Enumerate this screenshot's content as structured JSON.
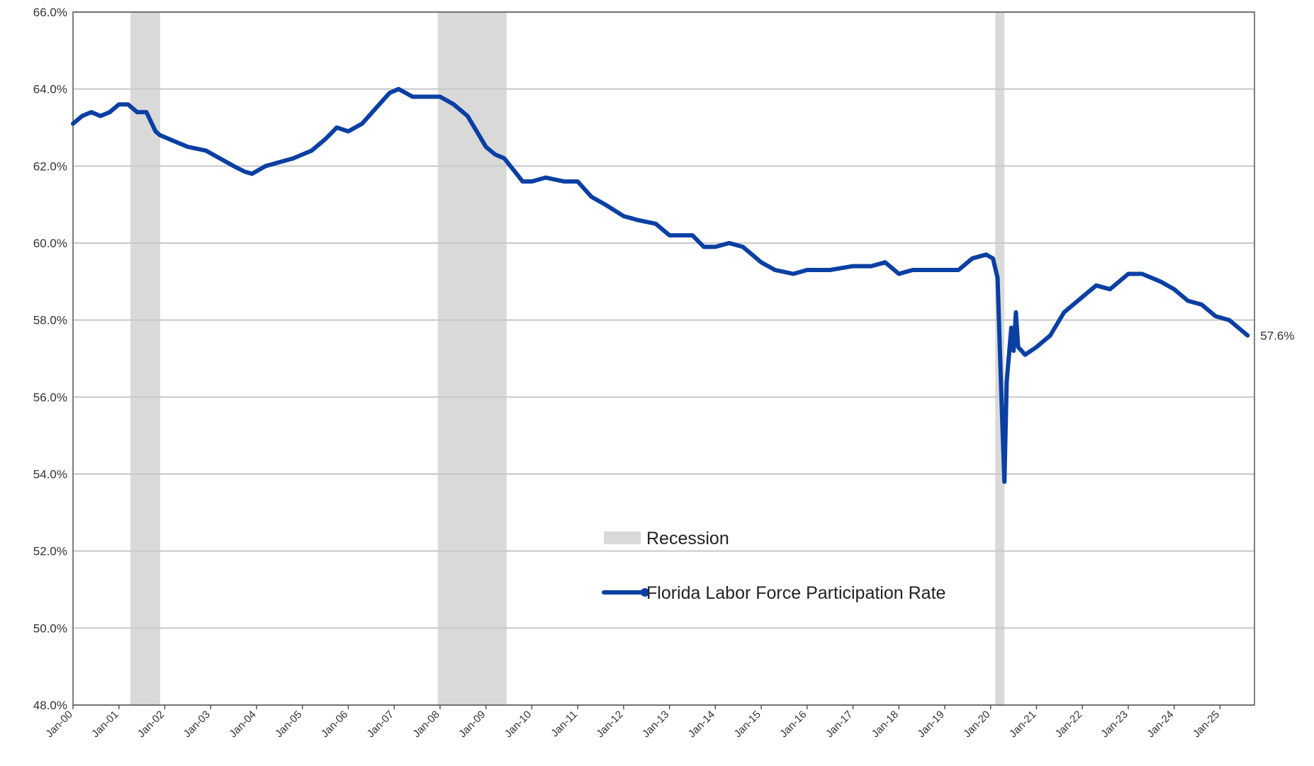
{
  "chart_data": {
    "type": "line",
    "title": "",
    "xlabel": "",
    "ylabel": "",
    "ylim": [
      48,
      66
    ],
    "ytick_values": [
      48,
      50,
      52,
      54,
      56,
      58,
      60,
      62,
      64,
      66
    ],
    "ytick_labels": [
      "48.0%",
      "50.0%",
      "52.0%",
      "54.0%",
      "56.0%",
      "58.0%",
      "60.0%",
      "62.0%",
      "64.0%",
      "66.0%"
    ],
    "xlim": [
      2000.0,
      2025.75
    ],
    "xtick_labels": [
      "Jan-00",
      "Jan-01",
      "Jan-02",
      "Jan-03",
      "Jan-04",
      "Jan-05",
      "Jan-06",
      "Jan-07",
      "Jan-08",
      "Jan-09",
      "Jan-10",
      "Jan-11",
      "Jan-12",
      "Jan-13",
      "Jan-14",
      "Jan-15",
      "Jan-16",
      "Jan-17",
      "Jan-18",
      "Jan-19",
      "Jan-20",
      "Jan-21",
      "Jan-22",
      "Jan-23",
      "Jan-24",
      "Jan-25"
    ],
    "grid": "horizontal",
    "legend_placement": "center-bottom",
    "legend": {
      "recession_label": "Recession",
      "series_label": "Florida Labor Force Participation Rate"
    },
    "colors": {
      "series": "#0a3fa3",
      "recession": "#d9d9d9",
      "grid": "#c8c8c8",
      "axis": "#555555"
    },
    "recessions": [
      {
        "start": 2001.25,
        "end": 2001.9
      },
      {
        "start": 2007.95,
        "end": 2009.45
      },
      {
        "start": 2020.1,
        "end": 2020.3
      }
    ],
    "series": [
      {
        "name": "Florida Labor Force Participation Rate",
        "x": [
          2000.0,
          2000.2,
          2000.4,
          2000.6,
          2000.8,
          2001.0,
          2001.2,
          2001.4,
          2001.6,
          2001.8,
          2001.9,
          2002.1,
          2002.5,
          2002.9,
          2003.2,
          2003.5,
          2003.75,
          2003.9,
          2004.2,
          2004.5,
          2004.8,
          2005.2,
          2005.5,
          2005.75,
          2006.0,
          2006.3,
          2006.6,
          2006.9,
          2007.1,
          2007.4,
          2007.7,
          2008.0,
          2008.3,
          2008.6,
          2008.8,
          2009.0,
          2009.2,
          2009.4,
          2009.6,
          2009.8,
          2010.0,
          2010.3,
          2010.7,
          2011.0,
          2011.3,
          2011.6,
          2012.0,
          2012.3,
          2012.7,
          2013.0,
          2013.3,
          2013.5,
          2013.75,
          2014.0,
          2014.3,
          2014.6,
          2015.0,
          2015.3,
          2015.7,
          2016.0,
          2016.5,
          2017.0,
          2017.4,
          2017.7,
          2018.0,
          2018.3,
          2018.7,
          2019.0,
          2019.3,
          2019.6,
          2019.9,
          2020.05,
          2020.15,
          2020.25,
          2020.3,
          2020.35,
          2020.45,
          2020.5,
          2020.55,
          2020.6,
          2020.75,
          2021.0,
          2021.3,
          2021.6,
          2022.0,
          2022.3,
          2022.6,
          2023.0,
          2023.3,
          2023.7,
          2024.0,
          2024.3,
          2024.6,
          2024.9,
          2025.2,
          2025.4,
          2025.6
        ],
        "values": [
          63.1,
          63.3,
          63.4,
          63.3,
          63.4,
          63.6,
          63.6,
          63.4,
          63.4,
          62.9,
          62.8,
          62.7,
          62.5,
          62.4,
          62.2,
          62.0,
          61.85,
          61.8,
          62.0,
          62.1,
          62.2,
          62.4,
          62.7,
          63.0,
          62.9,
          63.1,
          63.5,
          63.9,
          64.0,
          63.8,
          63.8,
          63.8,
          63.6,
          63.3,
          62.9,
          62.5,
          62.3,
          62.2,
          61.9,
          61.6,
          61.6,
          61.7,
          61.6,
          61.6,
          61.2,
          61.0,
          60.7,
          60.6,
          60.5,
          60.2,
          60.2,
          60.2,
          59.9,
          59.9,
          60.0,
          59.9,
          59.5,
          59.3,
          59.2,
          59.3,
          59.3,
          59.4,
          59.4,
          59.5,
          59.2,
          59.3,
          59.3,
          59.3,
          59.3,
          59.6,
          59.7,
          59.6,
          59.1,
          55.5,
          53.8,
          56.4,
          57.8,
          57.2,
          58.2,
          57.3,
          57.1,
          57.3,
          57.6,
          58.2,
          58.6,
          58.9,
          58.8,
          59.2,
          59.2,
          59.0,
          58.8,
          58.5,
          58.4,
          58.1,
          58.0,
          57.8,
          57.6
        ]
      }
    ],
    "end_label": "57.6%"
  }
}
